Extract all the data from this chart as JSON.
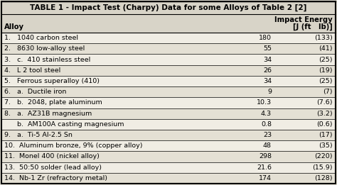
{
  "title": "TABLE 1 - Impact Test (Charpy) Data for some Alloys of Table 2 [2]",
  "col_header_alloy": "Alloy",
  "col_header_energy_line1": "Impact Energy",
  "col_header_energy_line2": "[J (ft   lb)]",
  "rows": [
    {
      "alloy": "1.   1040 carbon steel",
      "J": "180",
      "ftlb": "(133)"
    },
    {
      "alloy": "2.   8630 low-alloy steel",
      "J": "55",
      "ftlb": "(41)"
    },
    {
      "alloy": "3.   c.  410 stainless steel",
      "J": "34",
      "ftlb": "(25)"
    },
    {
      "alloy": "4.   L 2 tool steel",
      "J": "26",
      "ftlb": "(19)"
    },
    {
      "alloy": "5.   Ferrous superalloy (410)",
      "J": "34",
      "ftlb": "(25)"
    },
    {
      "alloy": "6.   a.  Ductile iron",
      "J": "9",
      "ftlb": "(7)"
    },
    {
      "alloy": "7.   b.  2048, plate aluminum",
      "J": "10.3",
      "ftlb": "(7.6)"
    },
    {
      "alloy": "8.   a.  AZ31B magnesium",
      "J": "4.3",
      "ftlb": "(3.2)"
    },
    {
      "alloy": "      b.  AM100A casting magnesium",
      "J": "0.8",
      "ftlb": "(0.6)"
    },
    {
      "alloy": "9.   a.  Ti-5 Al-2.5 Sn",
      "J": "23",
      "ftlb": "(17)"
    },
    {
      "alloy": "10.  Aluminum bronze, 9% (copper alloy)",
      "J": "48",
      "ftlb": "(35)"
    },
    {
      "alloy": "11.  Monel 400 (nickel alloy)",
      "J": "298",
      "ftlb": "(220)"
    },
    {
      "alloy": "13.  50:50 solder (lead alloy)",
      "J": "21.6",
      "ftlb": "(15.9)"
    },
    {
      "alloy": "14.  Nb-1 Zr (refractory metal)",
      "J": "174",
      "ftlb": "(128)"
    }
  ],
  "bg_color": "#e8e4d8",
  "title_bg": "#d8d4c8",
  "header_bg": "#d8d4c8",
  "row_bg_even": "#f0ede4",
  "row_bg_odd": "#e4e0d4",
  "line_color": "#000000",
  "text_color": "#000000",
  "font_size": 6.8,
  "title_font_size": 7.5,
  "header_font_size": 7.2
}
